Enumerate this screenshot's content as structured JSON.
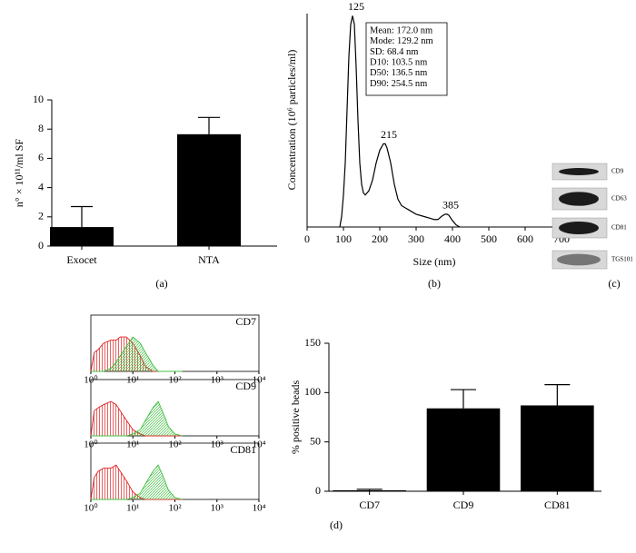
{
  "chart_data": [
    {
      "type": "bar",
      "ylabel": "n° × 10¹¹/ml SF",
      "categories": [
        "Exocet",
        "NTA"
      ],
      "values": [
        1.3,
        7.65
      ],
      "errors": [
        1.4,
        1.15
      ],
      "color": "#000000",
      "ylim": [
        0,
        10
      ],
      "yticks": [
        0,
        2,
        4,
        6,
        8,
        10
      ]
    },
    {
      "type": "line",
      "xlabel": "Size (nm)",
      "ylabel": "Concentration (10⁶ particles/ml)",
      "color": "#000000",
      "x": [
        90,
        95,
        100,
        105,
        110,
        115,
        120,
        125,
        130,
        135,
        140,
        145,
        150,
        155,
        160,
        170,
        180,
        190,
        200,
        210,
        215,
        220,
        230,
        240,
        250,
        260,
        270,
        280,
        300,
        320,
        340,
        350,
        360,
        370,
        380,
        385,
        390,
        400,
        410,
        420
      ],
      "values": [
        0,
        5,
        15,
        30,
        55,
        80,
        95,
        99,
        95,
        75,
        50,
        30,
        20,
        16,
        15,
        17,
        22,
        30,
        36,
        39,
        39,
        37,
        30,
        20,
        13,
        10,
        9,
        8,
        6,
        5,
        4,
        3.5,
        3.5,
        5,
        6,
        6,
        5.5,
        3,
        1,
        0
      ],
      "xlim": [
        0,
        750
      ],
      "xticks": [
        0,
        100,
        200,
        300,
        400,
        500,
        600,
        700
      ],
      "ylim": [
        0,
        100
      ],
      "annotations": [
        "125",
        "215",
        "385"
      ],
      "stats": [
        "Mean: 172.0 nm",
        "Mode: 129.2 nm",
        "SD: 68.4 nm",
        "D10: 103.5 nm",
        "D50: 136.5 nm",
        "D90: 254.5 nm"
      ]
    },
    {
      "type": "flow",
      "title": "CD7",
      "log_x": true,
      "x": [
        1,
        1.2,
        1.5,
        2,
        3,
        4,
        5,
        7,
        10,
        15,
        20,
        30,
        40,
        50,
        70,
        100,
        150
      ],
      "series": [
        {
          "color": "#e02020",
          "hatch": "vertical",
          "values": [
            0,
            30,
            35,
            45,
            50,
            50,
            55,
            55,
            45,
            25,
            8,
            0,
            0,
            0,
            0,
            0,
            0
          ]
        },
        {
          "color": "#40c040",
          "hatch": "diagonal",
          "values": [
            0,
            0,
            0,
            0,
            5,
            15,
            25,
            40,
            55,
            45,
            30,
            10,
            0,
            0,
            0,
            0,
            0
          ]
        }
      ],
      "xlim": [
        1,
        10000
      ],
      "xticks": [
        {
          "value": 1,
          "label": "10⁰"
        },
        {
          "value": 10,
          "label": "10¹"
        },
        {
          "value": 100,
          "label": "10²"
        },
        {
          "value": 1000,
          "label": "10³"
        },
        {
          "value": 10000,
          "label": "10⁴"
        }
      ],
      "ylim": [
        0,
        90
      ]
    },
    {
      "type": "flow",
      "title": "CD9",
      "log_x": true,
      "x": [
        1,
        1.2,
        1.5,
        2,
        3,
        4,
        5,
        7,
        10,
        15,
        20,
        30,
        40,
        50,
        70,
        100,
        150
      ],
      "series": [
        {
          "color": "#e02020",
          "hatch": "vertical",
          "values": [
            0,
            40,
            45,
            50,
            55,
            50,
            40,
            25,
            10,
            3,
            0,
            0,
            0,
            0,
            0,
            0,
            0
          ]
        },
        {
          "color": "#40c040",
          "hatch": "diagonal",
          "values": [
            0,
            0,
            0,
            0,
            0,
            0,
            0,
            0,
            3,
            10,
            25,
            45,
            55,
            40,
            15,
            3,
            0
          ]
        }
      ],
      "xlim": [
        1,
        10000
      ],
      "xticks": [
        {
          "value": 1,
          "label": "10⁰"
        },
        {
          "value": 10,
          "label": "10¹"
        },
        {
          "value": 100,
          "label": "10²"
        },
        {
          "value": 1000,
          "label": "10³"
        },
        {
          "value": 10000,
          "label": "10⁴"
        }
      ],
      "ylim": [
        0,
        90
      ]
    },
    {
      "type": "flow",
      "title": "CD81",
      "log_x": true,
      "x": [
        1,
        1.2,
        1.5,
        2,
        3,
        4,
        5,
        7,
        10,
        15,
        20,
        30,
        40,
        50,
        70,
        100,
        150
      ],
      "series": [
        {
          "color": "#e02020",
          "hatch": "vertical",
          "values": [
            0,
            35,
            45,
            50,
            50,
            55,
            45,
            30,
            12,
            3,
            0,
            0,
            0,
            0,
            0,
            0,
            0
          ]
        },
        {
          "color": "#40c040",
          "hatch": "diagonal",
          "values": [
            0,
            0,
            0,
            0,
            0,
            0,
            0,
            0,
            3,
            10,
            25,
            45,
            55,
            40,
            15,
            3,
            0
          ]
        }
      ],
      "xlim": [
        1,
        10000
      ],
      "xticks": [
        {
          "value": 1,
          "label": "10⁰"
        },
        {
          "value": 10,
          "label": "10¹"
        },
        {
          "value": 100,
          "label": "10²"
        },
        {
          "value": 1000,
          "label": "10³"
        },
        {
          "value": 10000,
          "label": "10⁴"
        }
      ],
      "ylim": [
        0,
        90
      ]
    },
    {
      "type": "bar",
      "ylabel": "% positive beads",
      "categories": [
        "CD7",
        "CD9",
        "CD81"
      ],
      "values": [
        1,
        84,
        87
      ],
      "errors": [
        1,
        19,
        21
      ],
      "color": "#000000",
      "ylim": [
        0,
        150
      ],
      "yticks": [
        0,
        50,
        100,
        150
      ]
    }
  ],
  "blot": {
    "labels": [
      "CD9",
      "CD63",
      "CD81",
      "TGS101"
    ]
  },
  "panel_labels": [
    "(a)",
    "(b)",
    "(c)",
    "(d)"
  ]
}
